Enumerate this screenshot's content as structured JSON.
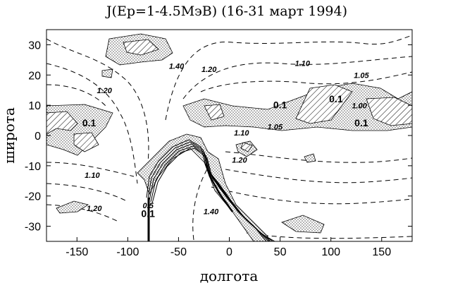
{
  "chart_data": {
    "type": "contour",
    "title": "J(Ep=1-4.5MэВ) (16-31 март 1994)",
    "xlabel": "долгота",
    "ylabel": "широта",
    "xlim": [
      -180,
      180
    ],
    "ylim": [
      -35,
      35
    ],
    "x_ticks": [
      -150,
      -100,
      -50,
      0,
      50,
      100,
      150
    ],
    "y_ticks": [
      30,
      20,
      10,
      0,
      -10,
      -20,
      -30
    ],
    "grid": false,
    "contour_labels": [
      {
        "text": "1.40",
        "x": -52,
        "y": 22
      },
      {
        "text": "1.20",
        "x": -20,
        "y": 21
      },
      {
        "text": "1.10",
        "x": 72,
        "y": 23
      },
      {
        "text": "1.05",
        "x": 130,
        "y": 19
      },
      {
        "text": "1.20",
        "x": -123,
        "y": 14
      },
      {
        "text": "0.1",
        "x": 50,
        "y": 9
      },
      {
        "text": "0.1",
        "x": 105,
        "y": 11
      },
      {
        "text": "1.00",
        "x": 128,
        "y": 9
      },
      {
        "text": "0.1",
        "x": -138,
        "y": 3
      },
      {
        "text": "0.1",
        "x": 130,
        "y": 3
      },
      {
        "text": "1.05",
        "x": 45,
        "y": 2
      },
      {
        "text": "1.10",
        "x": 12,
        "y": 0
      },
      {
        "text": "1.20",
        "x": 10,
        "y": -9
      },
      {
        "text": "1.10",
        "x": -135,
        "y": -14
      },
      {
        "text": "1.20",
        "x": -133,
        "y": -25
      },
      {
        "text": "1.40",
        "x": -18,
        "y": -26
      },
      {
        "text": "0.5",
        "x": -80,
        "y": -24
      },
      {
        "text": "0.1",
        "x": -80,
        "y": -27
      }
    ],
    "levels_shaded": {
      "stippled": "0.1",
      "hatched": "< 0.1"
    }
  }
}
